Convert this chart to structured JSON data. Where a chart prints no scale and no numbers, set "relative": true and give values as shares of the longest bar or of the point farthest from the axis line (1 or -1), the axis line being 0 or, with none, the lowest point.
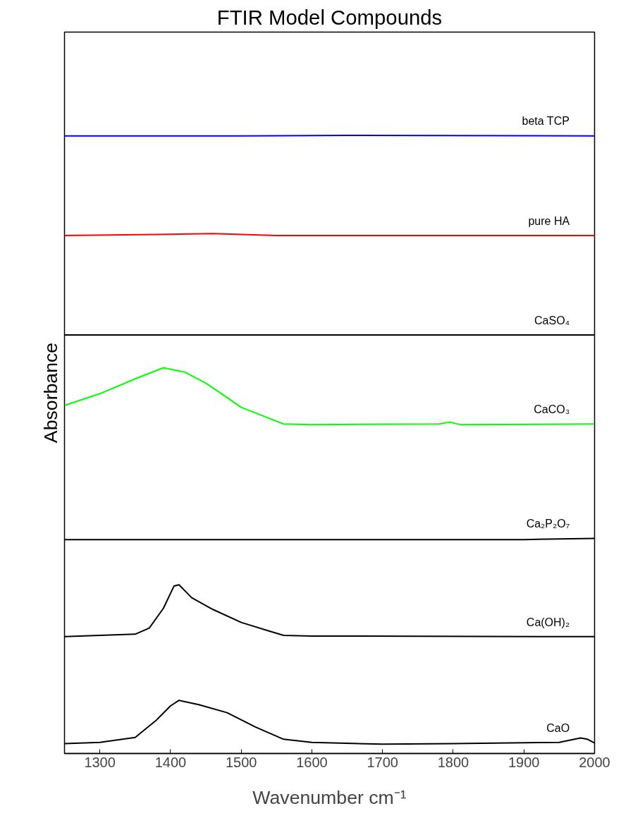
{
  "chart_data": {
    "type": "line",
    "title": "FTIR Model Compounds",
    "xlabel": "Wavenumber cm⁻¹",
    "ylabel": "Absorbance",
    "relative": true,
    "xlim": [
      1250,
      2000
    ],
    "xticks": [
      1300,
      1400,
      1500,
      1600,
      1700,
      1800,
      1900,
      2000
    ],
    "tick_labels": "x",
    "grid": false,
    "legend": false,
    "marker": "none",
    "line_style": "solid",
    "series": [
      {
        "name": "beta TCP",
        "color": "#0000ff",
        "x": [
          1250,
          1500,
          1650,
          2000
        ],
        "values": [
          0.999,
          0.999,
          1.0,
          0.999
        ]
      },
      {
        "name": "pure HA",
        "color": "#ff0000",
        "x": [
          1250,
          1400,
          1460,
          1550,
          2000
        ],
        "values": [
          0.838,
          0.84,
          0.841,
          0.838,
          0.838
        ]
      },
      {
        "name": "CaSO₄",
        "color": "#000000",
        "x": [
          1250,
          2000
        ],
        "values": [
          0.677,
          0.677
        ]
      },
      {
        "name": "CaCO₃",
        "color": "#00ff00",
        "x": [
          1250,
          1300,
          1350,
          1390,
          1420,
          1450,
          1480,
          1500,
          1540,
          1560,
          1600,
          1780,
          1795,
          1810,
          2000
        ],
        "values": [
          0.563,
          0.582,
          0.606,
          0.624,
          0.617,
          0.599,
          0.576,
          0.56,
          0.542,
          0.533,
          0.532,
          0.533,
          0.536,
          0.532,
          0.533
        ]
      },
      {
        "name": "Ca₂P₂O₇",
        "color": "#000000",
        "x": [
          1250,
          1900,
          2000
        ],
        "values": [
          0.346,
          0.346,
          0.348
        ]
      },
      {
        "name": "Ca(OH)₂",
        "color": "#000000",
        "x": [
          1250,
          1350,
          1370,
          1390,
          1405,
          1412,
          1430,
          1460,
          1500,
          1540,
          1560,
          1600,
          2000
        ],
        "values": [
          0.189,
          0.193,
          0.203,
          0.235,
          0.271,
          0.273,
          0.252,
          0.233,
          0.212,
          0.198,
          0.191,
          0.19,
          0.189
        ]
      },
      {
        "name": "CaO",
        "color": "#000000",
        "x": [
          1250,
          1300,
          1350,
          1380,
          1400,
          1412,
          1440,
          1480,
          1520,
          1560,
          1600,
          1700,
          1800,
          1950,
          1980,
          1990,
          2000
        ],
        "values": [
          0.016,
          0.018,
          0.026,
          0.054,
          0.077,
          0.086,
          0.079,
          0.066,
          0.043,
          0.023,
          0.018,
          0.015,
          0.016,
          0.018,
          0.025,
          0.023,
          0.017
        ]
      }
    ]
  }
}
